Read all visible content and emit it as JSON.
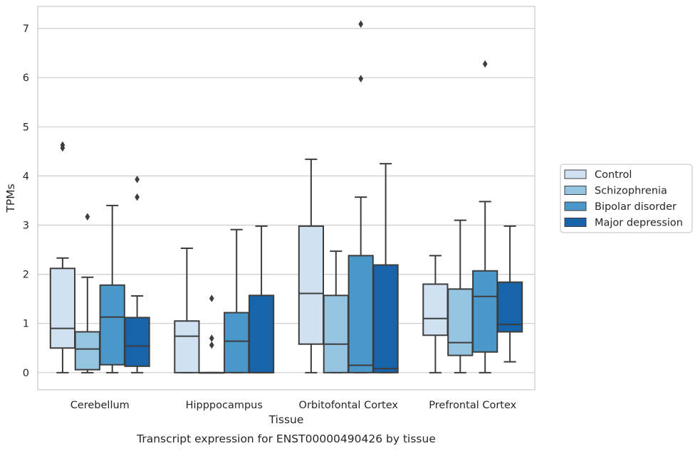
{
  "caption": "Transcript expression for ENST00000490426 by tissue",
  "chart_data": {
    "type": "box",
    "title": "",
    "xlabel": "Tissue",
    "ylabel": "TPMs",
    "ylim": [
      -0.35,
      7.45
    ],
    "yticks": [
      "0",
      "1",
      "2",
      "3",
      "4",
      "5",
      "6",
      "7"
    ],
    "grid": "horizontal",
    "legend_position": "right",
    "categories": [
      "Cerebellum",
      "Hipppocampus",
      "Orbitofontal Cortex",
      "Prefrontal Cortex"
    ],
    "series": [
      {
        "name": "Control",
        "color": "#d0e1f2",
        "boxes": [
          {
            "whislo": 0.0,
            "q1": 0.5,
            "median": 0.9,
            "q3": 2.12,
            "whishi": 2.33,
            "fliers": [
              4.63,
              4.57
            ]
          },
          {
            "whislo": 0.0,
            "q1": 0.0,
            "median": 0.74,
            "q3": 1.05,
            "whishi": 2.53,
            "fliers": []
          },
          {
            "whislo": 0.0,
            "q1": 0.58,
            "median": 1.61,
            "q3": 2.98,
            "whishi": 4.34,
            "fliers": []
          },
          {
            "whislo": 0.0,
            "q1": 0.76,
            "median": 1.1,
            "q3": 1.8,
            "whishi": 2.38,
            "fliers": []
          }
        ]
      },
      {
        "name": "Schizophrenia",
        "color": "#94c4df",
        "boxes": [
          {
            "whislo": 0.0,
            "q1": 0.06,
            "median": 0.48,
            "q3": 0.83,
            "whishi": 1.94,
            "fliers": [
              3.17
            ]
          },
          {
            "whislo": 0.0,
            "q1": 0.0,
            "median": 0.0,
            "q3": 0.0,
            "whishi": 0.0,
            "fliers": [
              1.51,
              0.7,
              0.56
            ]
          },
          {
            "whislo": 0.0,
            "q1": 0.0,
            "median": 0.58,
            "q3": 1.57,
            "whishi": 2.47,
            "fliers": []
          },
          {
            "whislo": 0.0,
            "q1": 0.35,
            "median": 0.61,
            "q3": 1.7,
            "whishi": 3.1,
            "fliers": []
          }
        ]
      },
      {
        "name": "Bipolar disorder",
        "color": "#4a98c9",
        "boxes": [
          {
            "whislo": 0.0,
            "q1": 0.16,
            "median": 1.13,
            "q3": 1.78,
            "whishi": 3.4,
            "fliers": []
          },
          {
            "whislo": 0.0,
            "q1": 0.0,
            "median": 0.64,
            "q3": 1.22,
            "whishi": 2.91,
            "fliers": []
          },
          {
            "whislo": 0.0,
            "q1": 0.0,
            "median": 0.15,
            "q3": 2.38,
            "whishi": 3.57,
            "fliers": [
              7.09,
              5.98
            ]
          },
          {
            "whislo": 0.0,
            "q1": 0.42,
            "median": 1.55,
            "q3": 2.07,
            "whishi": 3.48,
            "fliers": [
              6.28
            ]
          }
        ]
      },
      {
        "name": "Major depression",
        "color": "#1764ab",
        "boxes": [
          {
            "whislo": 0.0,
            "q1": 0.13,
            "median": 0.54,
            "q3": 1.12,
            "whishi": 1.56,
            "fliers": [
              3.93,
              3.57
            ]
          },
          {
            "whislo": 0.0,
            "q1": 0.0,
            "median": 0.0,
            "q3": 1.57,
            "whishi": 2.98,
            "fliers": []
          },
          {
            "whislo": 0.0,
            "q1": 0.0,
            "median": 0.08,
            "q3": 2.19,
            "whishi": 4.25,
            "fliers": []
          },
          {
            "whislo": 0.22,
            "q1": 0.83,
            "median": 0.98,
            "q3": 1.84,
            "whishi": 2.98,
            "fliers": []
          }
        ]
      }
    ]
  }
}
